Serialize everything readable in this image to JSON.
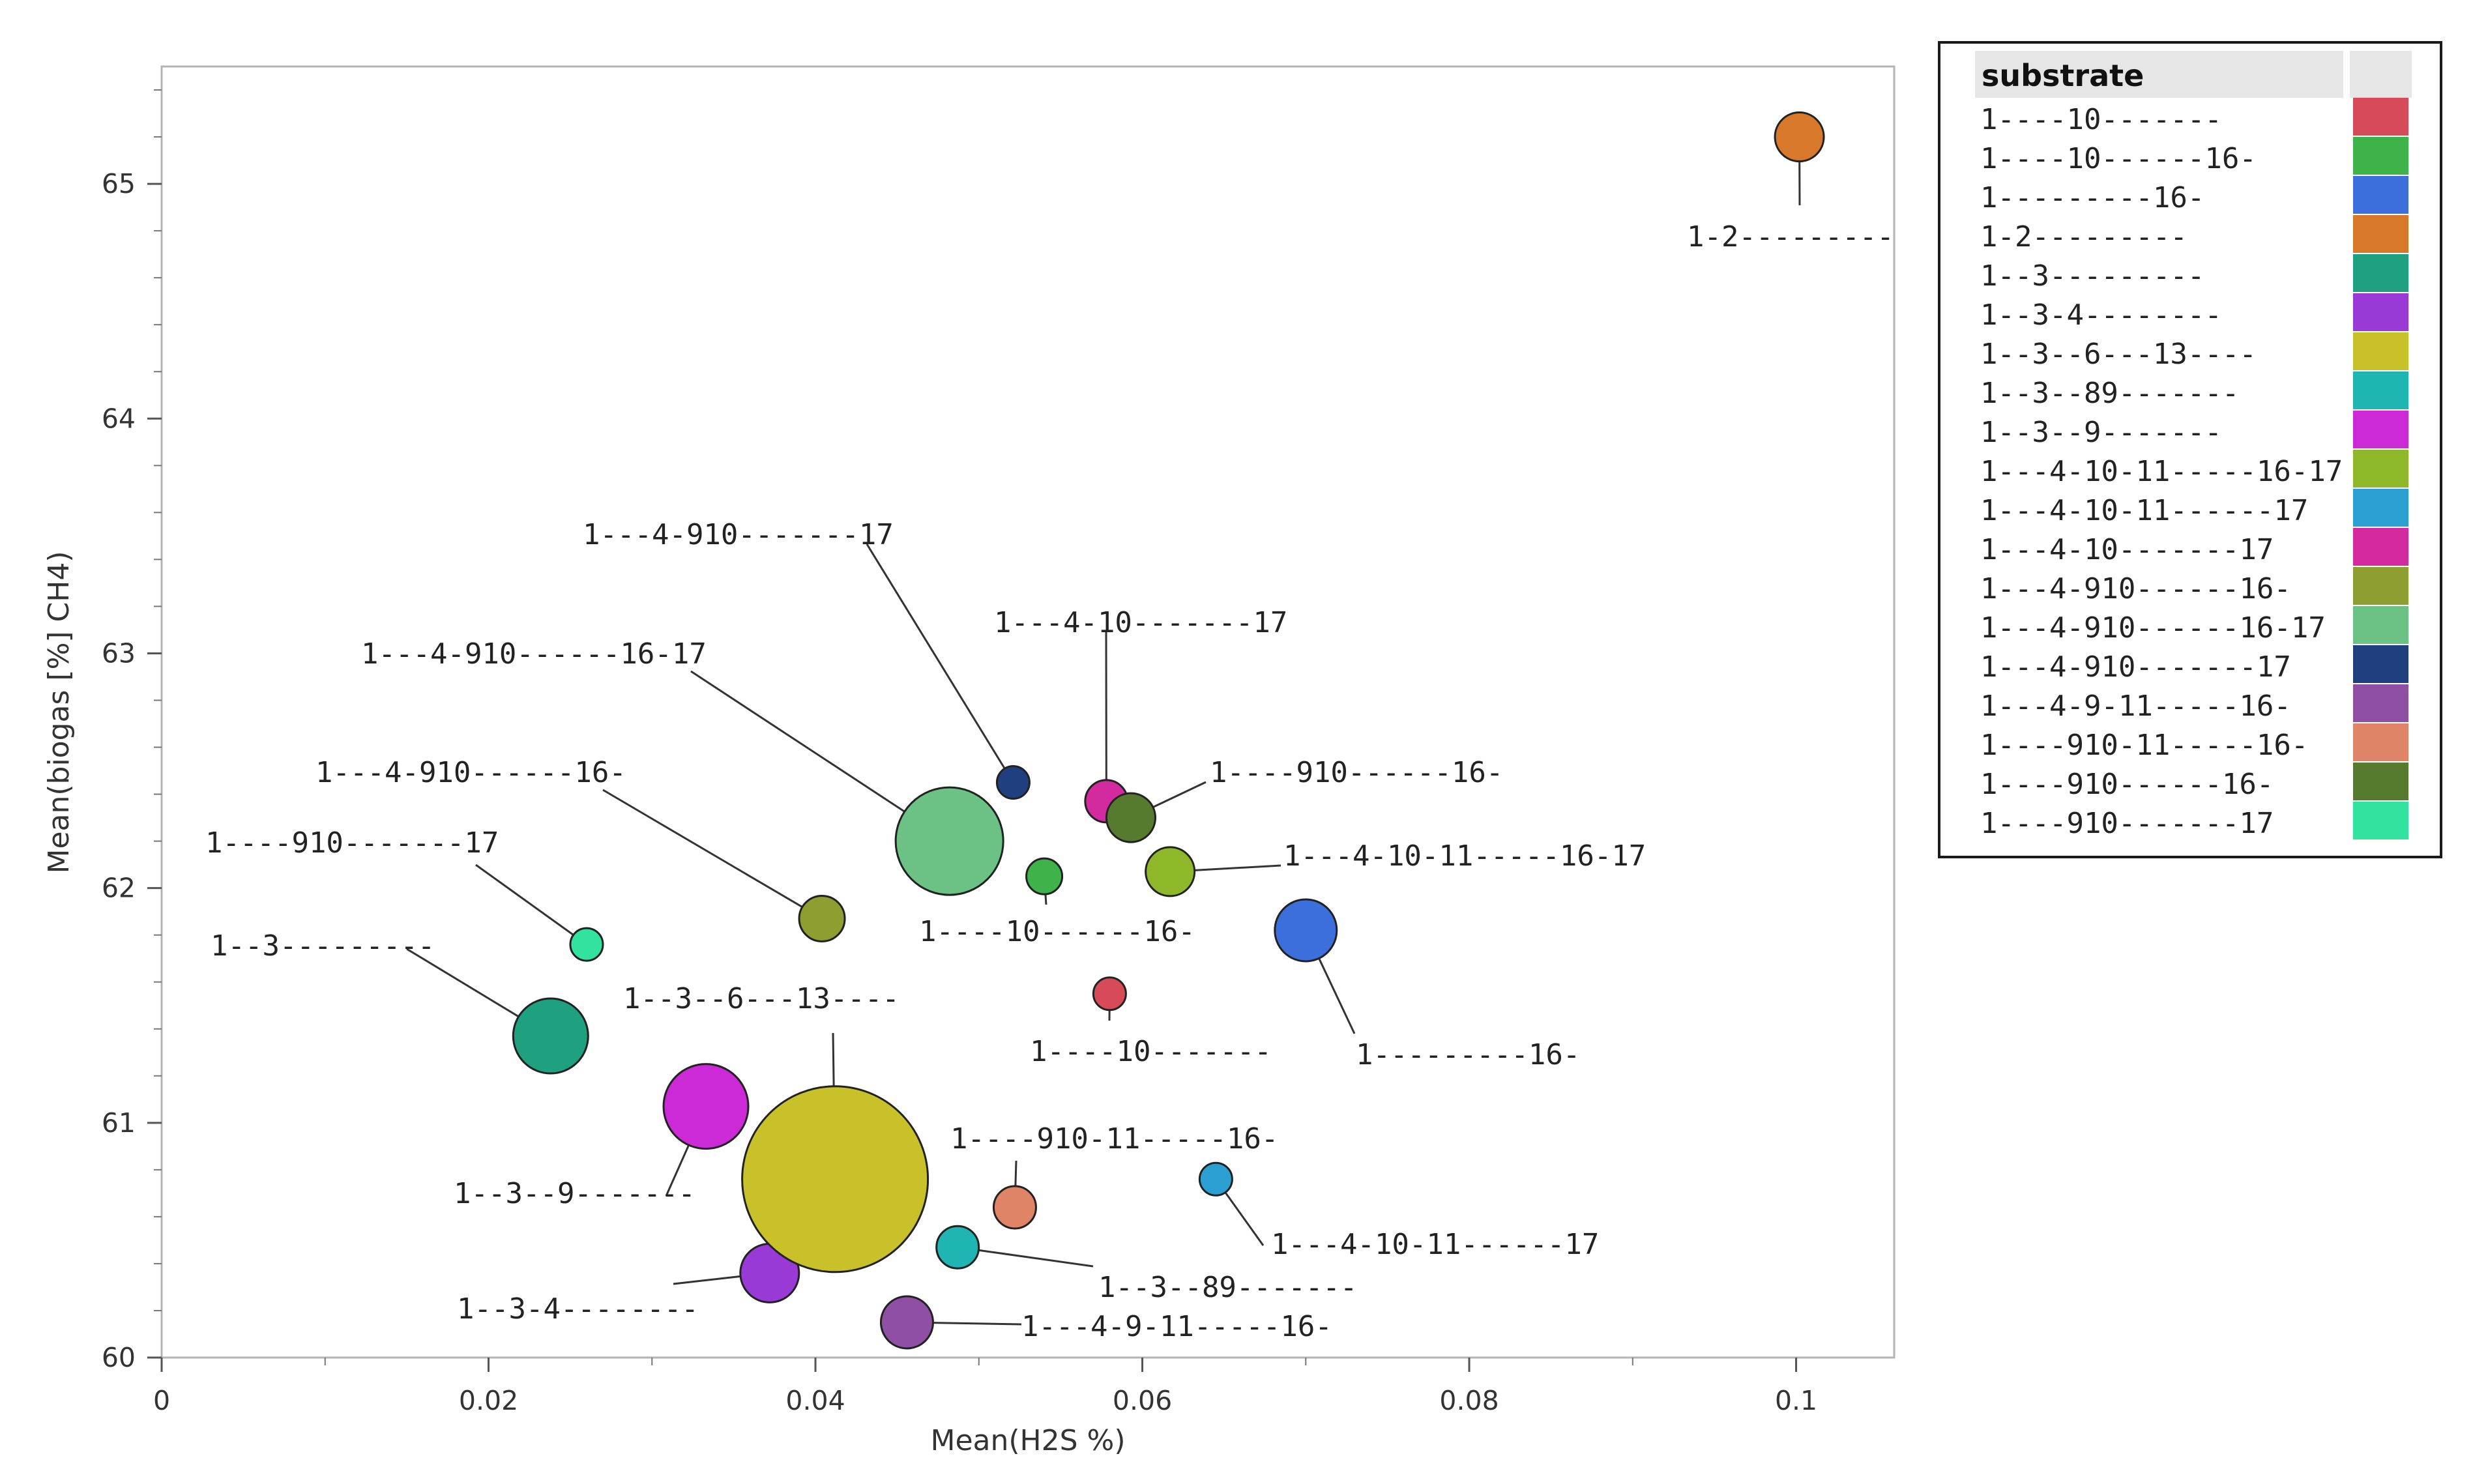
{
  "chart_data": {
    "type": "bubble",
    "xlabel": "Mean(H2S %)",
    "ylabel": "Mean(biogas [%] CH4)",
    "xlim": [
      0,
      0.106
    ],
    "ylim": [
      60,
      65.5
    ],
    "x_ticks": [
      "0",
      "0.02",
      "0.04",
      "0.06",
      "0.08",
      "0.1"
    ],
    "y_ticks": [
      "60",
      "61",
      "62",
      "63",
      "64",
      "65"
    ],
    "legend": {
      "title": "substrate",
      "placement": "right"
    },
    "series": [
      {
        "name": "1----10-------",
        "x": 0.058,
        "y": 61.55,
        "size": 1.0,
        "color": "#d64a5a"
      },
      {
        "name": "1----10------16-",
        "x": 0.054,
        "y": 62.05,
        "size": 1.1,
        "color": "#3db34a"
      },
      {
        "name": "1---------16-",
        "x": 0.07,
        "y": 61.82,
        "size": 1.9,
        "color": "#3d6fdc"
      },
      {
        "name": "1-2---------",
        "x": 0.1002,
        "y": 65.2,
        "size": 1.5,
        "color": "#d8782a"
      },
      {
        "name": "1--3---------",
        "x": 0.0238,
        "y": 61.37,
        "size": 2.3,
        "color": "#1fa07e"
      },
      {
        "name": "1--3-4--------",
        "x": 0.0372,
        "y": 60.36,
        "size": 1.8,
        "color": "#9a3ad6"
      },
      {
        "name": "1--3--6---13----",
        "x": 0.0412,
        "y": 60.76,
        "size": 5.7,
        "color": "#c9c12a"
      },
      {
        "name": "1--3--89-------",
        "x": 0.0487,
        "y": 60.47,
        "size": 1.3,
        "color": "#1fb5b2"
      },
      {
        "name": "1--3--9-------",
        "x": 0.0333,
        "y": 61.07,
        "size": 2.6,
        "color": "#cc2ad6"
      },
      {
        "name": "1---4-10-11-----16-17",
        "x": 0.0617,
        "y": 62.07,
        "size": 1.5,
        "color": "#8fb72a"
      },
      {
        "name": "1---4-10-11------17",
        "x": 0.0645,
        "y": 60.76,
        "size": 1.0,
        "color": "#2c9fd2"
      },
      {
        "name": "1---4-10-------17",
        "x": 0.0578,
        "y": 62.37,
        "size": 1.3,
        "color": "#d32aa0"
      },
      {
        "name": "1---4-910------16-",
        "x": 0.0404,
        "y": 61.87,
        "size": 1.4,
        "color": "#8f9e30"
      },
      {
        "name": "1---4-910------16-17",
        "x": 0.0482,
        "y": 62.2,
        "size": 3.3,
        "color": "#6cc285"
      },
      {
        "name": "1---4-910-------17",
        "x": 0.0521,
        "y": 62.45,
        "size": 1.0,
        "color": "#1f3f7e"
      },
      {
        "name": "1---4-9-11-----16-",
        "x": 0.0456,
        "y": 60.15,
        "size": 1.6,
        "color": "#8e4fa5"
      },
      {
        "name": "1----910-11-----16-",
        "x": 0.0522,
        "y": 60.64,
        "size": 1.3,
        "color": "#e08468"
      },
      {
        "name": "1----910------16-",
        "x": 0.0593,
        "y": 62.3,
        "size": 1.5,
        "color": "#567b2e"
      },
      {
        "name": "1----910-------17",
        "x": 0.026,
        "y": 61.76,
        "size": 1.0,
        "color": "#32e3a0"
      }
    ]
  }
}
